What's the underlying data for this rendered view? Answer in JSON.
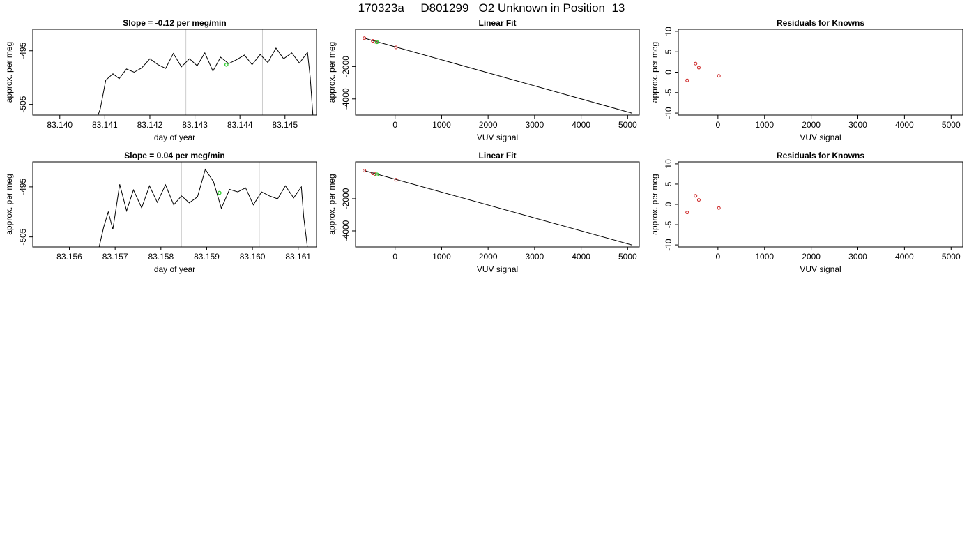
{
  "page_title": "170323a     D801299   O2 Unknown in Position  13",
  "chart_data": [
    {
      "id": "p1",
      "type": "line",
      "title": "Slope =  -0.12  per meg/min",
      "xlabel": "day of year",
      "ylabel": "approx. per meg",
      "xlim": [
        83.1394,
        83.1457
      ],
      "ylim": [
        -507,
        -491
      ],
      "xticks": [
        "83.140",
        "83.141",
        "83.142",
        "83.143",
        "83.144",
        "83.145"
      ],
      "yticks": [
        "-495",
        "-505"
      ],
      "vlines": [
        83.1428,
        83.1445
      ],
      "vline_color": "#cccccc",
      "highlight": {
        "x": 83.1437,
        "y": -497.6,
        "color": "#33cc33"
      },
      "line_color": "#000000",
      "series": [
        {
          "x": [
            83.14085,
            83.1409,
            83.14102,
            83.14118,
            83.14132,
            83.14148,
            83.14165,
            83.14182,
            83.142,
            83.14218,
            83.14235,
            83.14252,
            83.1427,
            83.14288,
            83.14305,
            83.14322,
            83.1434,
            83.14357,
            83.14375,
            83.14392,
            83.1441,
            83.14427,
            83.14445,
            83.14462,
            83.1448,
            83.14497,
            83.14515,
            83.14532,
            83.1455,
            83.14556,
            83.14562
          ],
          "y": [
            -507,
            -505.8,
            -500.5,
            -499.3,
            -500.2,
            -498.4,
            -499.0,
            -498.2,
            -496.5,
            -497.6,
            -498.3,
            -495.5,
            -498.0,
            -496.5,
            -497.8,
            -495.4,
            -498.8,
            -496.2,
            -497.4,
            -496.7,
            -495.8,
            -497.6,
            -495.7,
            -497.2,
            -494.5,
            -496.5,
            -495.4,
            -497.3,
            -495.3,
            -500,
            -507
          ]
        }
      ]
    },
    {
      "id": "p2",
      "type": "scatter",
      "title": "Linear Fit",
      "xlabel": "VUV signal",
      "ylabel": "approx. per meg",
      "xlim": [
        -850,
        5250
      ],
      "ylim": [
        -5000,
        300
      ],
      "xticks": [
        "0",
        "1000",
        "2000",
        "3000",
        "4000",
        "5000"
      ],
      "yticks": [
        "-2000",
        "-4000"
      ],
      "fit_line": {
        "x": [
          -660,
          5100
        ],
        "y": [
          -250,
          -4885
        ]
      },
      "points": {
        "x": [
          -660,
          -480,
          -430,
          20
        ],
        "y": [
          -250,
          -415,
          -470,
          -820
        ],
        "color": "#cc2222"
      },
      "highlight": {
        "x": -390,
        "y": -490,
        "color": "#33cc33"
      }
    },
    {
      "id": "p3",
      "type": "scatter",
      "title": "Residuals for Knowns",
      "xlabel": "VUV signal",
      "ylabel": "approx. per meg",
      "xlim": [
        -850,
        5250
      ],
      "ylim": [
        -10.5,
        10.5
      ],
      "xticks": [
        "0",
        "1000",
        "2000",
        "3000",
        "4000",
        "5000"
      ],
      "yticks": [
        "10",
        "5",
        "0",
        "-5",
        "-10"
      ],
      "points": {
        "x": [
          -660,
          -480,
          -410,
          20
        ],
        "y": [
          -2.0,
          2.1,
          1.1,
          -0.9
        ],
        "color": "#cc2222"
      }
    },
    {
      "id": "p4",
      "type": "line",
      "title": "Slope =  0.04  per meg/min",
      "xlabel": "day of year",
      "ylabel": "approx. per meg",
      "xlim": [
        83.1552,
        83.1614
      ],
      "ylim": [
        -507,
        -490
      ],
      "xticks": [
        "83.156",
        "83.157",
        "83.158",
        "83.159",
        "83.160",
        "83.161"
      ],
      "yticks": [
        "-495",
        "-505"
      ],
      "vlines": [
        83.15845,
        83.16015
      ],
      "vline_color": "#cccccc",
      "highlight": {
        "x": 83.15928,
        "y": -496.2,
        "color": "#33cc33"
      },
      "line_color": "#000000",
      "series": [
        {
          "x": [
            83.15665,
            83.15675,
            83.15685,
            83.15695,
            83.1571,
            83.15725,
            83.1574,
            83.15758,
            83.15775,
            83.15792,
            83.1581,
            83.15828,
            83.15845,
            83.15862,
            83.1588,
            83.15897,
            83.15915,
            83.15932,
            83.1595,
            83.15968,
            83.15985,
            83.16002,
            83.1602,
            83.16037,
            83.16055,
            83.16072,
            83.1609,
            83.16107,
            83.16112,
            83.1612
          ],
          "y": [
            -507,
            -503,
            -500,
            -503.5,
            -494.5,
            -499.8,
            -495.6,
            -499.2,
            -494.8,
            -498.1,
            -494.6,
            -498.6,
            -496.8,
            -498.2,
            -497.0,
            -491.5,
            -494.0,
            -499.3,
            -495.5,
            -496.0,
            -495.2,
            -498.6,
            -496.0,
            -496.8,
            -497.4,
            -494.8,
            -497.2,
            -495.0,
            -501,
            -507
          ]
        }
      ]
    },
    {
      "id": "p5",
      "type": "scatter",
      "title": "Linear Fit",
      "xlabel": "VUV signal",
      "ylabel": "approx. per meg",
      "xlim": [
        -850,
        5250
      ],
      "ylim": [
        -5000,
        300
      ],
      "xticks": [
        "0",
        "1000",
        "2000",
        "3000",
        "4000",
        "5000"
      ],
      "yticks": [
        "-2000",
        "-4000"
      ],
      "fit_line": {
        "x": [
          -660,
          5100
        ],
        "y": [
          -250,
          -4885
        ]
      },
      "points": {
        "x": [
          -660,
          -480,
          -430,
          20
        ],
        "y": [
          -250,
          -415,
          -470,
          -820
        ],
        "color": "#cc2222"
      },
      "highlight": {
        "x": -390,
        "y": -490,
        "color": "#33cc33"
      }
    },
    {
      "id": "p6",
      "type": "scatter",
      "title": "Residuals for Knowns",
      "xlabel": "VUV signal",
      "ylabel": "approx. per meg",
      "xlim": [
        -850,
        5250
      ],
      "ylim": [
        -10.5,
        10.5
      ],
      "xticks": [
        "0",
        "1000",
        "2000",
        "3000",
        "4000",
        "5000"
      ],
      "yticks": [
        "10",
        "5",
        "0",
        "-5",
        "-10"
      ],
      "points": {
        "x": [
          -660,
          -480,
          -410,
          20
        ],
        "y": [
          -2.0,
          2.1,
          1.1,
          -0.9
        ],
        "color": "#cc2222"
      }
    }
  ]
}
